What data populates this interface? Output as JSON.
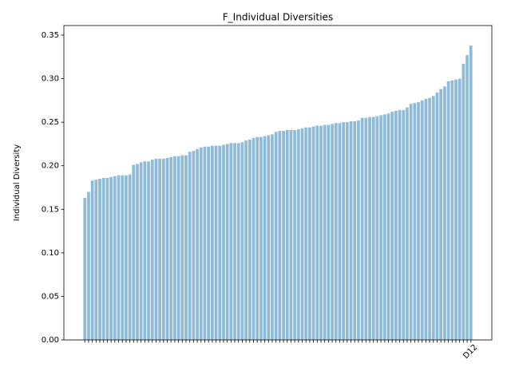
{
  "chart_data": {
    "type": "bar",
    "title": "F_Individual Diversities",
    "y_label": "Individual Diversity",
    "categories": [
      null,
      null,
      null,
      null,
      null,
      null,
      null,
      null,
      null,
      null,
      null,
      null,
      null,
      null,
      null,
      null,
      null,
      null,
      null,
      null,
      null,
      null,
      null,
      null,
      null,
      null,
      null,
      null,
      null,
      null,
      null,
      null,
      null,
      null,
      null,
      null,
      null,
      null,
      null,
      null,
      null,
      null,
      null,
      null,
      null,
      null,
      null,
      null,
      null,
      null,
      null,
      null,
      null,
      null,
      null,
      null,
      null,
      null,
      null,
      null,
      null,
      null,
      null,
      null,
      null,
      null,
      null,
      null,
      null,
      null,
      null,
      null,
      null,
      null,
      null,
      null,
      null,
      null,
      null,
      null,
      null,
      null,
      null,
      null,
      null,
      null,
      null,
      null,
      null,
      null,
      null,
      null,
      null,
      null,
      null,
      null,
      null,
      null,
      null,
      null,
      null,
      null,
      null,
      "D12"
    ],
    "values": [
      0.163,
      0.17,
      0.183,
      0.184,
      0.185,
      0.186,
      0.186,
      0.187,
      0.188,
      0.189,
      0.189,
      0.189,
      0.19,
      0.201,
      0.202,
      0.204,
      0.205,
      0.205,
      0.207,
      0.208,
      0.208,
      0.208,
      0.209,
      0.21,
      0.211,
      0.211,
      0.212,
      0.212,
      0.216,
      0.217,
      0.219,
      0.221,
      0.222,
      0.222,
      0.223,
      0.223,
      0.223,
      0.224,
      0.225,
      0.226,
      0.226,
      0.226,
      0.227,
      0.229,
      0.23,
      0.232,
      0.233,
      0.233,
      0.234,
      0.235,
      0.236,
      0.239,
      0.24,
      0.24,
      0.241,
      0.241,
      0.241,
      0.242,
      0.243,
      0.244,
      0.244,
      0.245,
      0.246,
      0.246,
      0.247,
      0.247,
      0.248,
      0.249,
      0.249,
      0.25,
      0.25,
      0.251,
      0.251,
      0.252,
      0.255,
      0.255,
      0.256,
      0.256,
      0.257,
      0.258,
      0.259,
      0.26,
      0.262,
      0.263,
      0.264,
      0.264,
      0.267,
      0.271,
      0.272,
      0.273,
      0.275,
      0.277,
      0.278,
      0.28,
      0.284,
      0.288,
      0.291,
      0.297,
      0.298,
      0.299,
      0.3,
      0.317,
      0.327,
      0.338
    ],
    "color": "#1f77b4",
    "alpha": 0.5,
    "ylim": [
      0,
      0.361
    ],
    "yticks": [
      {
        "value": 0,
        "label": "0.00"
      },
      {
        "value": 0.05,
        "label": "0.05"
      },
      {
        "value": 0.1,
        "label": "0.10"
      },
      {
        "value": 0.15,
        "label": "0.15"
      },
      {
        "value": 0.2,
        "label": "0.20"
      },
      {
        "value": 0.25,
        "label": "0.25"
      },
      {
        "value": 0.3,
        "label": "0.30"
      },
      {
        "value": 0.35,
        "label": "0.35"
      }
    ],
    "grid": false
  }
}
